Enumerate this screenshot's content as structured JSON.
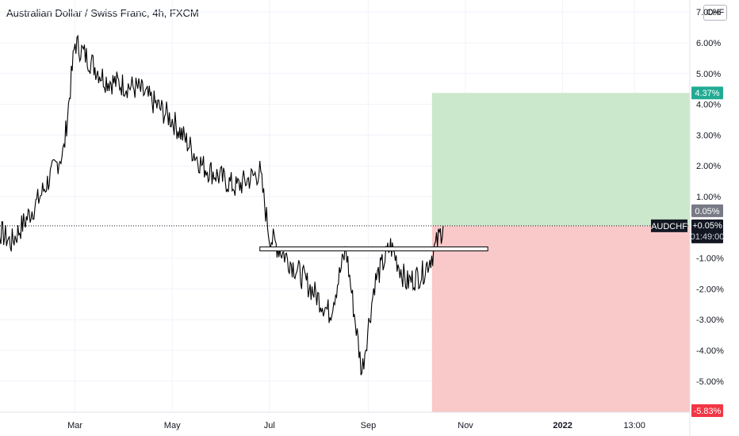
{
  "chart_title": "Australian Dollar / Swiss Franc, 4h, FXCM",
  "currency_button": "CHF",
  "chart_data": {
    "type": "line",
    "symbol": "AUDCHF",
    "y_unit": "percent change",
    "ylim": [
      -6.0,
      7.0
    ],
    "y_ticks": [
      "7.00%",
      "6.00%",
      "5.00%",
      "4.00%",
      "3.00%",
      "2.00%",
      "1.00%",
      "-1.00%",
      "-2.00%",
      "-3.00%",
      "-4.00%",
      "-5.00%"
    ],
    "x_ticks": [
      "Mar",
      "May",
      "Jul",
      "Sep",
      "Nov",
      "2022",
      "13:00"
    ],
    "x_dates": [
      "2021-01-01",
      "2021-01-20",
      "2021-02-05",
      "2021-02-22",
      "2021-03-01",
      "2021-03-20",
      "2021-04-10",
      "2021-05-01",
      "2021-05-20",
      "2021-06-10",
      "2021-06-25",
      "2021-07-01",
      "2021-07-20",
      "2021-08-08",
      "2021-08-18",
      "2021-08-28",
      "2021-09-05",
      "2021-09-15",
      "2021-09-25",
      "2021-10-05",
      "2021-10-12",
      "2021-10-18"
    ],
    "series": [
      {
        "values": [
          0.5,
          -0.5,
          0.8,
          2.5,
          6.0,
          4.8,
          4.5,
          3.5,
          2.0,
          1.3,
          1.8,
          -0.3,
          -1.5,
          -2.8,
          -0.7,
          -4.7,
          -1.8,
          -0.6,
          -1.8,
          -1.5,
          -0.8,
          0.05
        ]
      }
    ],
    "range_high": 4.37,
    "range_low": -5.83,
    "level": -0.7,
    "level_start": "2021-06-25",
    "level_end": "2021-11-15",
    "last_value": 0.05,
    "labels": {
      "take_profit": "4.37%",
      "current": "0.05%",
      "symbol": "AUDCHF",
      "change": "+0.05%",
      "countdown": "01:49:00",
      "stop_loss": "-5.83%"
    },
    "colors": {
      "profit_zone": "#c8e6c9",
      "loss_zone": "#f9c5c5",
      "profit_tag": "#22ab94",
      "loss_tag": "#f23645",
      "line": "#000000",
      "price_tag": "#131722"
    }
  }
}
